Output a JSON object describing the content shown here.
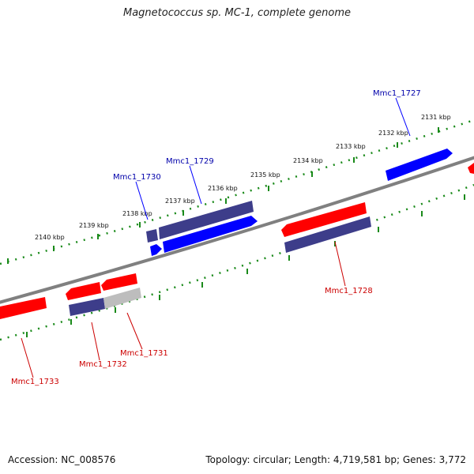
{
  "title": "Magnetococcus sp. MC-1, complete genome",
  "footer": {
    "accession": "Accession: NC_008576",
    "summary": "Topology: circular; Length: 4,719,581 bp; Genes: 3,772"
  },
  "colors": {
    "plus_strand": "#0000ff",
    "minus_strand": "#ff0000",
    "other": "#3d3d8a",
    "grey": "#bdbdbd",
    "backbone": "#808080",
    "tick": "#1a8a1a"
  },
  "ticks": [
    {
      "label": "2131 kbp"
    },
    {
      "label": "2132 kbp"
    },
    {
      "label": "2133 kbp"
    },
    {
      "label": "2134 kbp"
    },
    {
      "label": "2135 kbp"
    },
    {
      "label": "2136 kbp"
    },
    {
      "label": "2137 kbp"
    },
    {
      "label": "2138 kbp"
    },
    {
      "label": "2139 kbp"
    },
    {
      "label": "2140 kbp"
    }
  ],
  "gene_labels": [
    {
      "name": "Mmc1_1727",
      "strand": "plus"
    },
    {
      "name": "Mmc1_1729",
      "strand": "plus"
    },
    {
      "name": "Mmc1_1730",
      "strand": "plus"
    },
    {
      "name": "Mmc1_1728",
      "strand": "minus"
    },
    {
      "name": "Mmc1_1731",
      "strand": "minus"
    },
    {
      "name": "Mmc1_1732",
      "strand": "minus"
    },
    {
      "name": "Mmc1_1733",
      "strand": "minus"
    }
  ]
}
